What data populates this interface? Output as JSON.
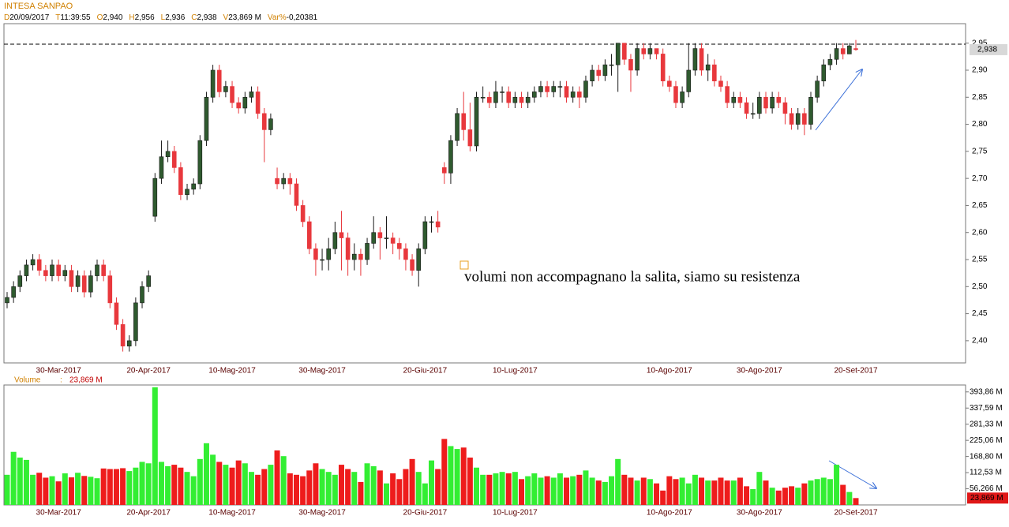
{
  "chart_data": [
    {
      "type": "candlestick",
      "title": "INTESA SANPAO",
      "info": [
        {
          "key": "D",
          "text": "20/09/2017"
        },
        {
          "key": "T",
          "text": "11:39:55"
        },
        {
          "key": "O",
          "text": "2,940"
        },
        {
          "key": "H",
          "text": "2,956"
        },
        {
          "key": "L",
          "text": "2,936"
        },
        {
          "key": "C",
          "text": "2,938"
        },
        {
          "key": "V",
          "text": "23,869 M"
        },
        {
          "key": "Var%",
          "text": "-0,20381"
        }
      ],
      "categories": [
        null,
        null,
        null,
        null,
        null,
        null,
        null,
        null,
        "30-Mar-2017",
        null,
        null,
        null,
        null,
        null,
        null,
        null,
        null,
        null,
        null,
        null,
        null,
        null,
        "20-Apr-2017",
        null,
        null,
        null,
        null,
        null,
        null,
        null,
        null,
        null,
        null,
        null,
        null,
        "10-Mag-2017",
        null,
        null,
        null,
        null,
        null,
        null,
        null,
        null,
        null,
        null,
        null,
        null,
        null,
        "30-Mag-2017",
        null,
        null,
        null,
        null,
        null,
        null,
        null,
        null,
        null,
        null,
        null,
        null,
        null,
        null,
        null,
        "20-Giu-2017",
        null,
        null,
        null,
        null,
        null,
        null,
        null,
        null,
        null,
        null,
        null,
        null,
        null,
        "10-Lug-2017",
        null,
        null,
        null,
        null,
        null,
        null,
        null,
        null,
        null,
        null,
        null,
        null,
        null,
        null,
        null,
        null,
        null,
        null,
        null,
        null,
        null,
        null,
        null,
        "10-Ago-2017",
        null,
        null,
        null,
        null,
        null,
        null,
        null,
        null,
        null,
        null,
        null,
        null,
        null,
        "30-Ago-2017",
        null,
        null,
        null,
        null,
        null,
        null,
        null,
        null,
        null,
        null,
        null,
        null,
        null,
        null,
        "20-Set-2017"
      ],
      "open": [
        2.47,
        2.48,
        2.5,
        2.52,
        2.54,
        2.55,
        2.53,
        2.52,
        2.54,
        2.52,
        2.53,
        2.5,
        2.52,
        2.49,
        2.52,
        2.54,
        2.52,
        2.47,
        2.43,
        2.39,
        2.4,
        2.47,
        2.5,
        2.63,
        2.7,
        2.74,
        2.75,
        2.72,
        2.67,
        2.68,
        2.69,
        2.77,
        2.85,
        2.9,
        2.86,
        2.87,
        2.84,
        2.83,
        2.85,
        2.86,
        2.82,
        2.79,
        2.7,
        2.69,
        2.7,
        2.69,
        2.65,
        2.62,
        2.57,
        2.55,
        2.55,
        2.57,
        2.6,
        2.59,
        2.55,
        2.56,
        2.55,
        2.58,
        2.6,
        2.59,
        2.59,
        2.58,
        2.57,
        2.55,
        2.53,
        2.57,
        2.62,
        2.62,
        2.72,
        2.71,
        2.77,
        2.82,
        2.79,
        2.76,
        2.85,
        2.85,
        2.84,
        2.86,
        2.86,
        2.84,
        2.85,
        2.84,
        2.85,
        2.86,
        2.87,
        2.86,
        2.87,
        2.87,
        2.85,
        2.86,
        2.85,
        2.88,
        2.9,
        2.89,
        2.91,
        2.91,
        2.95,
        2.92,
        2.9,
        2.94,
        2.93,
        2.94,
        2.93,
        2.88,
        2.87,
        2.84,
        2.86,
        2.9,
        2.94,
        2.9,
        2.91,
        2.88,
        2.87,
        2.84,
        2.85,
        2.84,
        2.82,
        2.82,
        2.85,
        2.83,
        2.85,
        2.84,
        2.82,
        2.8,
        2.82,
        2.8,
        2.85,
        2.88,
        2.91,
        2.92,
        2.94,
        2.93,
        2.94
      ],
      "high": [
        2.49,
        2.51,
        2.53,
        2.55,
        2.56,
        2.56,
        2.54,
        2.55,
        2.55,
        2.54,
        2.54,
        2.53,
        2.53,
        2.53,
        2.55,
        2.55,
        2.53,
        2.48,
        2.44,
        2.41,
        2.48,
        2.51,
        2.53,
        2.71,
        2.77,
        2.77,
        2.76,
        2.73,
        2.69,
        2.7,
        2.78,
        2.86,
        2.91,
        2.91,
        2.88,
        2.88,
        2.85,
        2.86,
        2.87,
        2.87,
        2.83,
        2.82,
        2.72,
        2.71,
        2.71,
        2.7,
        2.66,
        2.63,
        2.58,
        2.57,
        2.59,
        2.62,
        2.64,
        2.6,
        2.58,
        2.57,
        2.59,
        2.63,
        2.61,
        2.63,
        2.6,
        2.59,
        2.58,
        2.56,
        2.58,
        2.63,
        2.63,
        2.64,
        2.73,
        2.78,
        2.83,
        2.86,
        2.84,
        2.86,
        2.87,
        2.86,
        2.88,
        2.87,
        2.87,
        2.86,
        2.86,
        2.86,
        2.87,
        2.88,
        2.88,
        2.88,
        2.88,
        2.88,
        2.87,
        2.87,
        2.89,
        2.91,
        2.91,
        2.92,
        2.93,
        2.95,
        2.95,
        2.93,
        2.95,
        2.95,
        2.95,
        2.94,
        2.94,
        2.89,
        2.88,
        2.87,
        2.95,
        2.95,
        2.95,
        2.93,
        2.92,
        2.89,
        2.88,
        2.86,
        2.86,
        2.85,
        2.84,
        2.86,
        2.86,
        2.86,
        2.86,
        2.85,
        2.83,
        2.83,
        2.83,
        2.86,
        2.89,
        2.92,
        2.93,
        2.95,
        2.95,
        2.95,
        2.956
      ],
      "low": [
        2.46,
        2.47,
        2.49,
        2.51,
        2.53,
        2.52,
        2.51,
        2.51,
        2.51,
        2.51,
        2.49,
        2.49,
        2.48,
        2.48,
        2.51,
        2.51,
        2.46,
        2.42,
        2.38,
        2.38,
        2.39,
        2.46,
        2.49,
        2.62,
        2.69,
        2.73,
        2.71,
        2.66,
        2.66,
        2.67,
        2.68,
        2.76,
        2.84,
        2.85,
        2.85,
        2.83,
        2.82,
        2.82,
        2.84,
        2.81,
        2.73,
        2.78,
        2.68,
        2.68,
        2.67,
        2.64,
        2.61,
        2.56,
        2.52,
        2.53,
        2.53,
        2.56,
        2.53,
        2.52,
        2.53,
        2.52,
        2.54,
        2.57,
        2.55,
        2.57,
        2.56,
        2.55,
        2.53,
        2.52,
        2.5,
        2.56,
        2.6,
        2.6,
        2.69,
        2.69,
        2.76,
        2.77,
        2.75,
        2.75,
        2.84,
        2.83,
        2.83,
        2.84,
        2.83,
        2.83,
        2.83,
        2.83,
        2.84,
        2.85,
        2.85,
        2.85,
        2.85,
        2.84,
        2.84,
        2.83,
        2.84,
        2.87,
        2.88,
        2.88,
        2.89,
        2.86,
        2.91,
        2.86,
        2.89,
        2.92,
        2.92,
        2.92,
        2.87,
        2.86,
        2.83,
        2.83,
        2.85,
        2.89,
        2.89,
        2.88,
        2.87,
        2.86,
        2.83,
        2.83,
        2.83,
        2.81,
        2.81,
        2.81,
        2.82,
        2.82,
        2.83,
        2.8,
        2.79,
        2.79,
        2.78,
        2.79,
        2.84,
        2.87,
        2.9,
        2.91,
        2.92,
        2.93,
        2.936
      ],
      "close": [
        2.48,
        2.5,
        2.52,
        2.54,
        2.55,
        2.53,
        2.52,
        2.54,
        2.52,
        2.53,
        2.5,
        2.52,
        2.49,
        2.52,
        2.54,
        2.52,
        2.47,
        2.43,
        2.39,
        2.4,
        2.47,
        2.5,
        2.52,
        2.7,
        2.74,
        2.75,
        2.72,
        2.67,
        2.68,
        2.69,
        2.77,
        2.85,
        2.9,
        2.86,
        2.87,
        2.84,
        2.83,
        2.85,
        2.86,
        2.82,
        2.79,
        2.81,
        2.69,
        2.7,
        2.69,
        2.65,
        2.62,
        2.57,
        2.55,
        2.55,
        2.57,
        2.6,
        2.59,
        2.55,
        2.56,
        2.55,
        2.58,
        2.6,
        2.59,
        2.59,
        2.58,
        2.57,
        2.55,
        2.53,
        2.57,
        2.62,
        2.62,
        2.61,
        2.71,
        2.77,
        2.82,
        2.79,
        2.76,
        2.85,
        2.85,
        2.84,
        2.86,
        2.86,
        2.84,
        2.85,
        2.84,
        2.85,
        2.86,
        2.87,
        2.86,
        2.87,
        2.87,
        2.85,
        2.86,
        2.85,
        2.88,
        2.9,
        2.89,
        2.91,
        2.91,
        2.95,
        2.92,
        2.9,
        2.94,
        2.93,
        2.94,
        2.93,
        2.88,
        2.87,
        2.84,
        2.86,
        2.9,
        2.94,
        2.9,
        2.91,
        2.88,
        2.87,
        2.84,
        2.85,
        2.84,
        2.82,
        2.82,
        2.85,
        2.83,
        2.85,
        2.84,
        2.82,
        2.8,
        2.82,
        2.8,
        2.85,
        2.88,
        2.91,
        2.92,
        2.94,
        2.93,
        2.945,
        2.938
      ],
      "ylim": [
        2.359,
        2.986
      ],
      "yticks": [
        {
          "value": 2.4,
          "label": "2,40"
        },
        {
          "value": 2.45,
          "label": "2,45"
        },
        {
          "value": 2.5,
          "label": "2,50"
        },
        {
          "value": 2.55,
          "label": "2,55"
        },
        {
          "value": 2.6,
          "label": "2,60"
        },
        {
          "value": 2.65,
          "label": "2,65"
        },
        {
          "value": 2.7,
          "label": "2,70"
        },
        {
          "value": 2.75,
          "label": "2,75"
        },
        {
          "value": 2.8,
          "label": "2,80"
        },
        {
          "value": 2.85,
          "label": "2,85"
        },
        {
          "value": 2.9,
          "label": "2,90"
        },
        {
          "value": 2.95,
          "label": "2,95"
        }
      ],
      "up_color": "#2f5a2f",
      "down_color": "#e8383d",
      "resistance": 2.948,
      "current_price": {
        "value": 2.938,
        "label": "2,938"
      },
      "annotation": "volumi non accompagnano la salita, siamo su resistenza"
    },
    {
      "type": "bar",
      "title": "Volume",
      "values": [
        105,
        185,
        165,
        157,
        105,
        112,
        95,
        100,
        82,
        110,
        96,
        112,
        101,
        98,
        93,
        127,
        125,
        125,
        128,
        118,
        130,
        150,
        145,
        410,
        150,
        135,
        140,
        130,
        115,
        100,
        160,
        215,
        175,
        150,
        140,
        130,
        155,
        145,
        115,
        105,
        125,
        140,
        190,
        170,
        110,
        105,
        100,
        120,
        145,
        125,
        115,
        105,
        140,
        125,
        115,
        80,
        145,
        135,
        120,
        75,
        110,
        90,
        125,
        160,
        115,
        75,
        155,
        125,
        230,
        205,
        195,
        200,
        165,
        130,
        105,
        105,
        110,
        115,
        110,
        115,
        90,
        100,
        110,
        95,
        100,
        95,
        110,
        95,
        100,
        105,
        120,
        95,
        85,
        80,
        100,
        160,
        105,
        95,
        85,
        95,
        90,
        75,
        50,
        100,
        90,
        95,
        75,
        105,
        95,
        85,
        85,
        95,
        85,
        85,
        95,
        65,
        55,
        115,
        85,
        60,
        50,
        60,
        65,
        60,
        75,
        85,
        90,
        95,
        90,
        140,
        70,
        45,
        23.869
      ],
      "ylim": [
        0,
        418
      ],
      "yticks": [
        {
          "value": 56.266,
          "label": "56,266 M"
        },
        {
          "value": 112.53,
          "label": "112,53 M"
        },
        {
          "value": 168.8,
          "label": "168,80 M"
        },
        {
          "value": 225.06,
          "label": "225,06 M"
        },
        {
          "value": 281.33,
          "label": "281,33 M"
        },
        {
          "value": 337.59,
          "label": "337,59 M"
        },
        {
          "value": 393.86,
          "label": "393,86 M"
        }
      ],
      "up_color": "#33ee33",
      "down_color": "#ee1c1c",
      "current_volume": {
        "value": 23.869,
        "label": "23,869 M"
      }
    }
  ]
}
